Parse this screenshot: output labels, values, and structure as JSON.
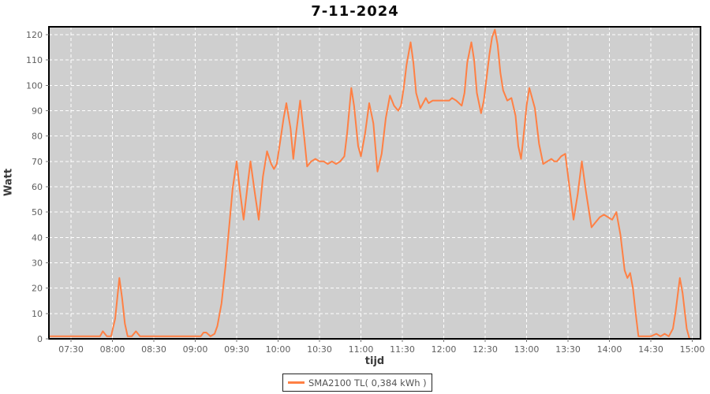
{
  "title": "7-11-2024",
  "chart_data": {
    "type": "line",
    "title": "7-11-2024",
    "xlabel": "tijd",
    "ylabel": "Watt",
    "ylim": [
      0,
      120
    ],
    "y_ticks": [
      0,
      10,
      20,
      30,
      40,
      50,
      60,
      70,
      80,
      90,
      100,
      110,
      120
    ],
    "x_ticks": [
      {
        "label": "07:30",
        "minutes": 450
      },
      {
        "label": "08:00",
        "minutes": 480
      },
      {
        "label": "08:30",
        "minutes": 510
      },
      {
        "label": "09:00",
        "minutes": 540
      },
      {
        "label": "09:30",
        "minutes": 570
      },
      {
        "label": "10:00",
        "minutes": 600
      },
      {
        "label": "10:30",
        "minutes": 630
      },
      {
        "label": "11:00",
        "minutes": 660
      },
      {
        "label": "11:30",
        "minutes": 690
      },
      {
        "label": "12:00",
        "minutes": 720
      },
      {
        "label": "12:30",
        "minutes": 750
      },
      {
        "label": "13:00",
        "minutes": 780
      },
      {
        "label": "13:30",
        "minutes": 810
      },
      {
        "label": "14:00",
        "minutes": 840
      },
      {
        "label": "14:30",
        "minutes": 870
      },
      {
        "label": "15:00",
        "minutes": 900
      }
    ],
    "x_domain_minutes": [
      434,
      906
    ],
    "grid": true,
    "legend": {
      "label": "SMA2100 TL( 0,384 kWh )",
      "position": "bottom-center"
    },
    "colors": {
      "plot_bg": "#cfcfcf",
      "grid": "#ffffff",
      "border": "#000000",
      "tick": "#777777",
      "line": "#ff8044",
      "title_text": "#0a0a0a",
      "axis_title_text": "#3a3a3a",
      "tick_label_text": "#5f5f5f",
      "legend_text": "#555555"
    },
    "series": [
      {
        "name": "SMA2100 TL( 0,384 kWh )",
        "color": "#ff8044",
        "points": [
          [
            435,
            1
          ],
          [
            440,
            1
          ],
          [
            445,
            1
          ],
          [
            450,
            1
          ],
          [
            456,
            1
          ],
          [
            462,
            1
          ],
          [
            468,
            1
          ],
          [
            471,
            1
          ],
          [
            473,
            3
          ],
          [
            476,
            1
          ],
          [
            479,
            1
          ],
          [
            482,
            8
          ],
          [
            485,
            24
          ],
          [
            487,
            16
          ],
          [
            489,
            6
          ],
          [
            491,
            1
          ],
          [
            494,
            1
          ],
          [
            497,
            3
          ],
          [
            500,
            1
          ],
          [
            505,
            1
          ],
          [
            510,
            1
          ],
          [
            516,
            1
          ],
          [
            522,
            1
          ],
          [
            528,
            1
          ],
          [
            534,
            1
          ],
          [
            540,
            1
          ],
          [
            544,
            1
          ],
          [
            546,
            2.5
          ],
          [
            548,
            2.5
          ],
          [
            551,
            1
          ],
          [
            554,
            2
          ],
          [
            556,
            5
          ],
          [
            559,
            14
          ],
          [
            562,
            29
          ],
          [
            565,
            47
          ],
          [
            567,
            59
          ],
          [
            570,
            70
          ],
          [
            572,
            60
          ],
          [
            575,
            47
          ],
          [
            578,
            61
          ],
          [
            580,
            70
          ],
          [
            583,
            58
          ],
          [
            586,
            47
          ],
          [
            589,
            64
          ],
          [
            592,
            74
          ],
          [
            595,
            69
          ],
          [
            597,
            67
          ],
          [
            599,
            69
          ],
          [
            601,
            76
          ],
          [
            604,
            87
          ],
          [
            606,
            93
          ],
          [
            609,
            83
          ],
          [
            611,
            71
          ],
          [
            613,
            81
          ],
          [
            616,
            94
          ],
          [
            619,
            79
          ],
          [
            621,
            68
          ],
          [
            624,
            70
          ],
          [
            627,
            71
          ],
          [
            630,
            70
          ],
          [
            633,
            70
          ],
          [
            636,
            69
          ],
          [
            639,
            70
          ],
          [
            642,
            69
          ],
          [
            645,
            70
          ],
          [
            648,
            72
          ],
          [
            650,
            81
          ],
          [
            653,
            99
          ],
          [
            655,
            92
          ],
          [
            658,
            76
          ],
          [
            660,
            72
          ],
          [
            663,
            81
          ],
          [
            666,
            93
          ],
          [
            669,
            85
          ],
          [
            672,
            66
          ],
          [
            675,
            73
          ],
          [
            678,
            87
          ],
          [
            681,
            96
          ],
          [
            684,
            92
          ],
          [
            687,
            90
          ],
          [
            689,
            92
          ],
          [
            691,
            99
          ],
          [
            693,
            108
          ],
          [
            696,
            117
          ],
          [
            698,
            109
          ],
          [
            700,
            97
          ],
          [
            703,
            91
          ],
          [
            705,
            93
          ],
          [
            707,
            95
          ],
          [
            709,
            93
          ],
          [
            712,
            94
          ],
          [
            716,
            94
          ],
          [
            720,
            94
          ],
          [
            724,
            94
          ],
          [
            726,
            95
          ],
          [
            729,
            94
          ],
          [
            733,
            92
          ],
          [
            735,
            97
          ],
          [
            737,
            109
          ],
          [
            740,
            117
          ],
          [
            742,
            110
          ],
          [
            744,
            97
          ],
          [
            747,
            89
          ],
          [
            749,
            94
          ],
          [
            751,
            103
          ],
          [
            753,
            112
          ],
          [
            755,
            119
          ],
          [
            757,
            122
          ],
          [
            759,
            116
          ],
          [
            761,
            105
          ],
          [
            763,
            98
          ],
          [
            766,
            94
          ],
          [
            769,
            95
          ],
          [
            772,
            88
          ],
          [
            774,
            76
          ],
          [
            776,
            71
          ],
          [
            778,
            81
          ],
          [
            780,
            92
          ],
          [
            782,
            99
          ],
          [
            784,
            95
          ],
          [
            786,
            91
          ],
          [
            789,
            77
          ],
          [
            792,
            69
          ],
          [
            795,
            70
          ],
          [
            798,
            71
          ],
          [
            800,
            70
          ],
          [
            802,
            70
          ],
          [
            805,
            72
          ],
          [
            808,
            73
          ],
          [
            811,
            60
          ],
          [
            814,
            47
          ],
          [
            817,
            57
          ],
          [
            820,
            70
          ],
          [
            823,
            58
          ],
          [
            827,
            44
          ],
          [
            830,
            46
          ],
          [
            833,
            48
          ],
          [
            836,
            49
          ],
          [
            839,
            48
          ],
          [
            842,
            47
          ],
          [
            845,
            50
          ],
          [
            848,
            41
          ],
          [
            851,
            27
          ],
          [
            853,
            24
          ],
          [
            855,
            26
          ],
          [
            857,
            20
          ],
          [
            859,
            10
          ],
          [
            861,
            1
          ],
          [
            864,
            1
          ],
          [
            867,
            1
          ],
          [
            870,
            1
          ],
          [
            874,
            2
          ],
          [
            877,
            1
          ],
          [
            880,
            2
          ],
          [
            883,
            1
          ],
          [
            886,
            4
          ],
          [
            888,
            11
          ],
          [
            891,
            24
          ],
          [
            893,
            18
          ],
          [
            896,
            4
          ],
          [
            898,
            0
          ]
        ]
      }
    ]
  }
}
